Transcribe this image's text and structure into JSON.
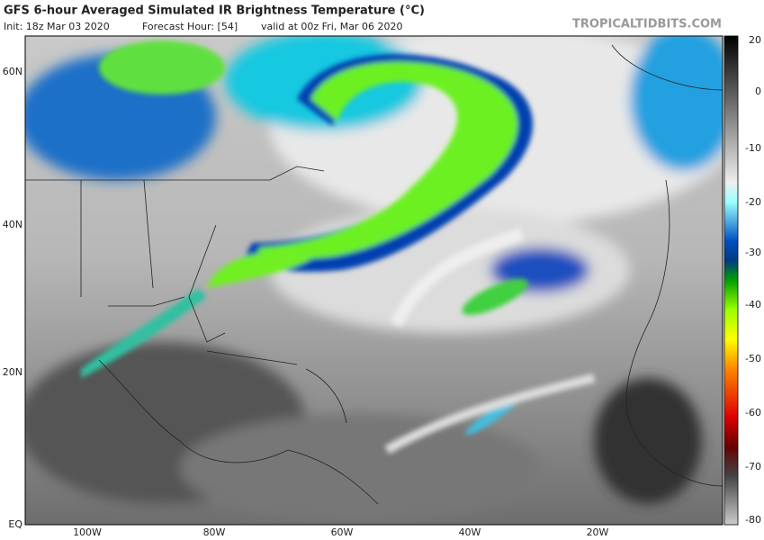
{
  "header": {
    "title": "GFS 6-hour Averaged Simulated IR Brightness Temperature (°C)",
    "init": "Init: 18z Mar 03 2020",
    "forecast": "Forecast Hour: [54]",
    "valid": "valid at 00z Fri, Mar 06 2020",
    "site": "TROPICALTIDBITS.COM"
  },
  "map": {
    "lat_labels": [
      "60N",
      "40N",
      "20N",
      "EQ"
    ],
    "lon_labels": [
      "100W",
      "80W",
      "60W",
      "40W",
      "20W"
    ]
  },
  "colorbar": {
    "labels": [
      "20",
      "0",
      "-10",
      "-20",
      "-30",
      "-40",
      "-50",
      "-60",
      "-70",
      "-80"
    ]
  }
}
